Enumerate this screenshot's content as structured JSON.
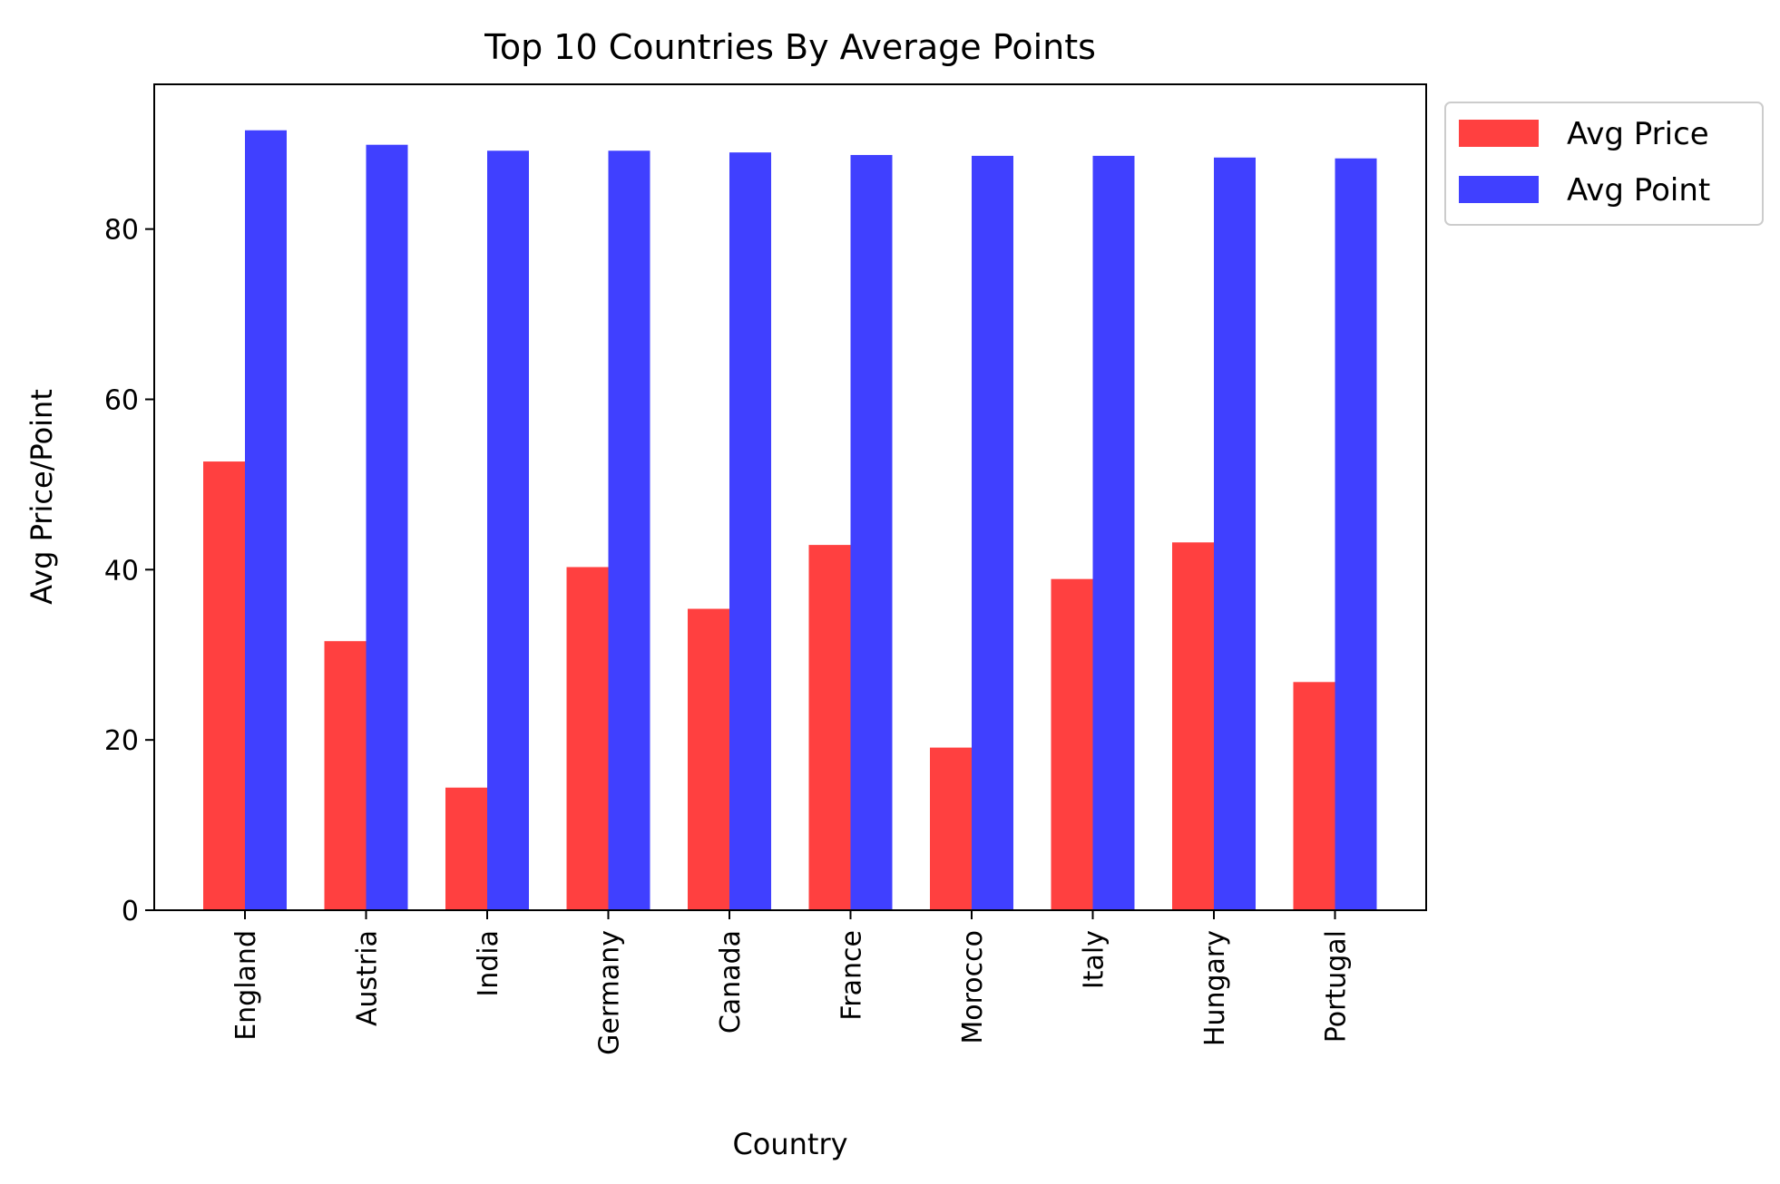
{
  "chart_data": {
    "type": "bar",
    "title": "Top 10 Countries By Average Points",
    "xlabel": "Country",
    "ylabel": "Avg Price/Point",
    "ylim": [
      0,
      97
    ],
    "yticks": [
      0,
      20,
      40,
      60,
      80
    ],
    "grid": false,
    "legend": "outside-top-right",
    "categories": [
      "England",
      "Austria",
      "India",
      "Germany",
      "Canada",
      "France",
      "Morocco",
      "Italy",
      "Hungary",
      "Portugal"
    ],
    "series": [
      {
        "name": "Avg Price",
        "color": "#ff4040",
        "values": [
          52.7,
          31.6,
          14.4,
          40.3,
          35.4,
          42.9,
          19.1,
          38.9,
          43.2,
          26.8
        ]
      },
      {
        "name": "Avg Point",
        "color": "#4040ff",
        "values": [
          91.6,
          89.9,
          89.2,
          89.2,
          89.0,
          88.7,
          88.6,
          88.6,
          88.4,
          88.3
        ]
      }
    ]
  }
}
